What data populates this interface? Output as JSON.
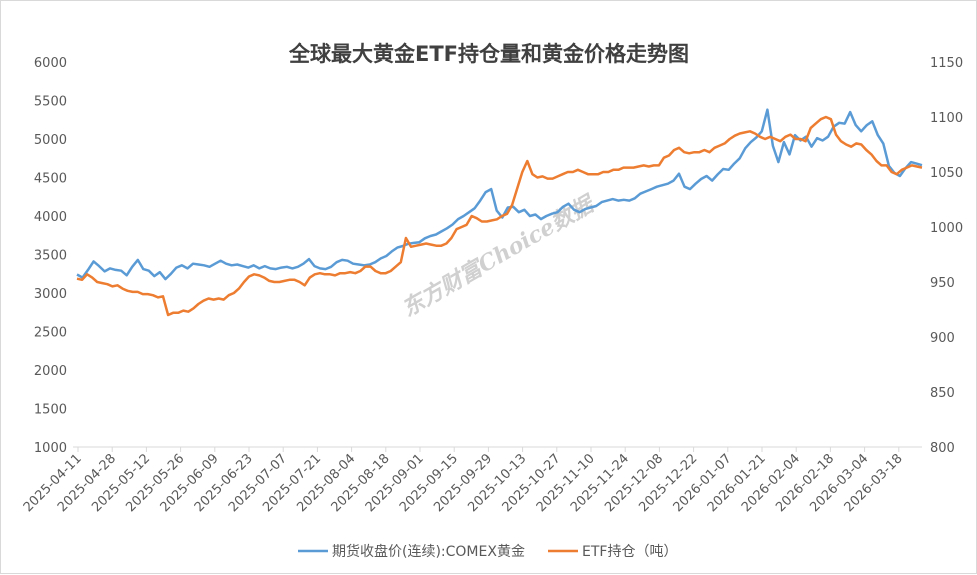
{
  "chart_data": {
    "type": "line",
    "title": "全球最大黄金ETF持仓量和黄金价格走势图",
    "watermark": "东方财富Choice数据",
    "y_left": {
      "min": 1000,
      "max": 6000,
      "ticks": [
        "1000",
        "1500",
        "2000",
        "2500",
        "3000",
        "3500",
        "4000",
        "4500",
        "5000",
        "5500",
        "6000"
      ]
    },
    "y_right": {
      "min": 800,
      "max": 1150,
      "ticks": [
        "800",
        "850",
        "900",
        "950",
        "1000",
        "1050",
        "1100",
        "1150"
      ]
    },
    "x_labels": [
      "2025-04-11",
      "2025-04-28",
      "2025-05-12",
      "2025-05-26",
      "2025-06-09",
      "2025-06-23",
      "2025-07-07",
      "2025-07-21",
      "2025-08-04",
      "2025-08-18",
      "2025-09-01",
      "2025-09-15",
      "2025-09-29",
      "2025-10-13",
      "2025-10-27",
      "2025-11-10",
      "2025-11-24",
      "2025-12-08",
      "2025-12-22",
      "2026-01-07",
      "2026-01-21",
      "2026-02-04",
      "2026-02-18",
      "2026-03-04",
      "2026-03-18"
    ],
    "series": [
      {
        "name": "期货收盘价(连续):COMEX黄金",
        "axis": "left",
        "color": "#5b9bd5",
        "values": [
          3240,
          3200,
          3300,
          3410,
          3350,
          3280,
          3320,
          3300,
          3290,
          3230,
          3340,
          3430,
          3310,
          3290,
          3220,
          3270,
          3180,
          3250,
          3330,
          3360,
          3320,
          3380,
          3370,
          3360,
          3340,
          3380,
          3420,
          3380,
          3360,
          3370,
          3350,
          3330,
          3360,
          3320,
          3350,
          3320,
          3310,
          3330,
          3340,
          3320,
          3340,
          3380,
          3440,
          3350,
          3320,
          3310,
          3340,
          3400,
          3430,
          3420,
          3380,
          3370,
          3360,
          3370,
          3400,
          3450,
          3480,
          3540,
          3590,
          3610,
          3640,
          3650,
          3660,
          3710,
          3740,
          3760,
          3800,
          3840,
          3890,
          3960,
          4000,
          4050,
          4100,
          4200,
          4310,
          4350,
          4070,
          3980,
          4110,
          4120,
          4050,
          4080,
          4000,
          4020,
          3960,
          4000,
          4030,
          4050,
          4120,
          4160,
          4080,
          4050,
          4090,
          4110,
          4130,
          4180,
          4200,
          4220,
          4200,
          4210,
          4200,
          4230,
          4290,
          4320,
          4350,
          4380,
          4400,
          4420,
          4460,
          4550,
          4380,
          4350,
          4420,
          4480,
          4520,
          4460,
          4540,
          4610,
          4600,
          4680,
          4750,
          4880,
          4960,
          5020,
          5100,
          5380,
          4910,
          4700,
          4960,
          4800,
          5050,
          4980,
          5030,
          4900,
          5010,
          4980,
          5030,
          5160,
          5210,
          5200,
          5350,
          5180,
          5100,
          5180,
          5230,
          5050,
          4940,
          4650,
          4560,
          4520,
          4620,
          4700,
          4680,
          4660
        ]
      },
      {
        "name": "ETF持仓（吨）",
        "axis": "right",
        "color": "#ed7d31",
        "values": [
          953,
          952,
          957,
          954,
          950,
          949,
          948,
          946,
          947,
          944,
          942,
          941,
          941,
          939,
          939,
          938,
          936,
          937,
          920,
          922,
          922,
          924,
          923,
          926,
          930,
          933,
          935,
          934,
          935,
          934,
          938,
          940,
          944,
          950,
          955,
          957,
          956,
          954,
          951,
          950,
          950,
          951,
          952,
          952,
          950,
          947,
          954,
          957,
          958,
          957,
          957,
          956,
          958,
          958,
          959,
          958,
          960,
          964,
          964,
          960,
          958,
          958,
          960,
          964,
          968,
          990,
          982,
          983,
          984,
          985,
          984,
          983,
          983,
          985,
          990,
          998,
          1000,
          1002,
          1010,
          1008,
          1005,
          1005,
          1006,
          1007,
          1010,
          1012,
          1020,
          1035,
          1050,
          1060,
          1048,
          1045,
          1046,
          1044,
          1044,
          1046,
          1048,
          1050,
          1050,
          1052,
          1050,
          1048,
          1048,
          1048,
          1050,
          1050,
          1052,
          1052,
          1054,
          1054,
          1054,
          1055,
          1056,
          1055,
          1056,
          1056,
          1063,
          1065,
          1070,
          1072,
          1068,
          1067,
          1068,
          1068,
          1070,
          1068,
          1072,
          1074,
          1076,
          1080,
          1083,
          1085,
          1086,
          1087,
          1085,
          1082,
          1080,
          1082,
          1080,
          1078,
          1082,
          1084,
          1080,
          1080,
          1078,
          1090,
          1094,
          1098,
          1100,
          1098,
          1084,
          1078,
          1075,
          1073,
          1076,
          1075,
          1070,
          1066,
          1060,
          1056,
          1056,
          1050,
          1048,
          1052,
          1054,
          1056,
          1055,
          1054
        ]
      }
    ],
    "legend": {
      "position": "bottom"
    }
  }
}
